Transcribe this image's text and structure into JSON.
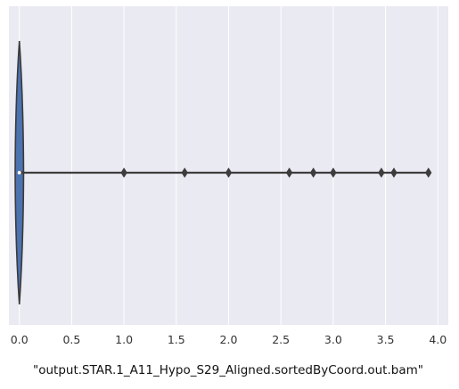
{
  "chart_data": {
    "type": "violin",
    "title": "",
    "xlabel": "\"output.STAR.1_A11_Hypo_S29_Aligned.sortedByCoord.out.bam\"",
    "ylabel": "",
    "xlim": [
      -0.1,
      4.1
    ],
    "xticks": [
      0.0,
      0.5,
      1.0,
      1.5,
      2.0,
      2.5,
      3.0,
      3.5,
      4.0
    ],
    "xtick_labels": [
      "0.0",
      "0.5",
      "1.0",
      "1.5",
      "2.0",
      "2.5",
      "3.0",
      "3.5",
      "4.0"
    ],
    "grid": true,
    "orientation": "horizontal",
    "colors": {
      "background": "#eaeaf2",
      "grid": "#ffffff",
      "violin_fill": "#4c72b0",
      "violin_edge": "#3a3a3a",
      "whisker": "#3d3d3d",
      "flier": "#3d3d3d",
      "median": "#ffffff"
    },
    "series": [
      {
        "median": 0.0,
        "q1": 0.0,
        "q3": 0.0,
        "whisker_low": 0.0,
        "whisker_high": 0.03,
        "outliers": [
          1.0,
          1.58,
          2.0,
          2.58,
          2.81,
          3.0,
          3.46,
          3.58,
          3.91
        ]
      }
    ]
  }
}
